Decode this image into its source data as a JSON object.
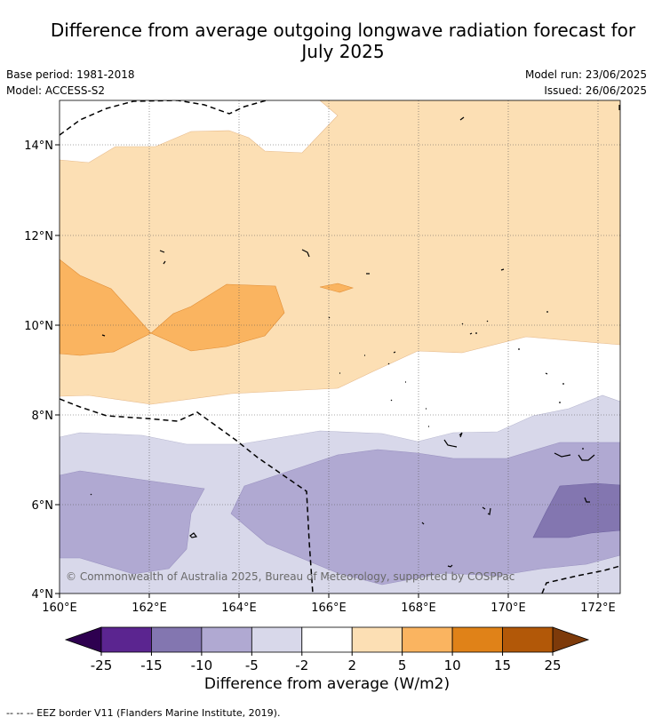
{
  "header": {
    "title_line1": "Difference from average outgoing longwave radiation forecast for",
    "title_line2": "July 2025",
    "base_period": "Base period: 1981-2018",
    "model": "Model: ACCESS-S2",
    "model_run": "Model run: 23/06/2025",
    "issued": "Issued: 26/06/2025"
  },
  "map": {
    "lat_labels": [
      "14°N",
      "12°N",
      "10°N",
      "8°N",
      "6°N",
      "4°N"
    ],
    "lon_labels": [
      "160°E",
      "162°E",
      "164°E",
      "166°E",
      "168°E",
      "170°E",
      "172°E"
    ],
    "copyright": "© Commonwealth of Australia 2025, Bureau of Meteorology, supported by COSPPac",
    "band_colors": {
      "pos_2_5": "#fcdfb4",
      "pos_5_10": "#fab460",
      "neg_2_5": "#d8d8ea",
      "neg_5_10": "#b0a9d2",
      "neg_10_15": "#8376b0"
    }
  },
  "colorbar": {
    "title": "Difference from average (W/m2)",
    "tick_labels": [
      "-25",
      "-15",
      "-10",
      "-5",
      "-2",
      "2",
      "5",
      "10",
      "15",
      "25"
    ],
    "colors": [
      "#5b2590",
      "#8376b0",
      "#b0a9d2",
      "#d8d8ea",
      "#ffffff",
      "#fcdfb4",
      "#fab460",
      "#e08218",
      "#b25808"
    ],
    "low_extend_color": "#2e0050",
    "high_extend_color": "#7d3a0a"
  },
  "footnote": "-- -- -- EEZ border V11 (Flanders Marine Institute, 2019)."
}
